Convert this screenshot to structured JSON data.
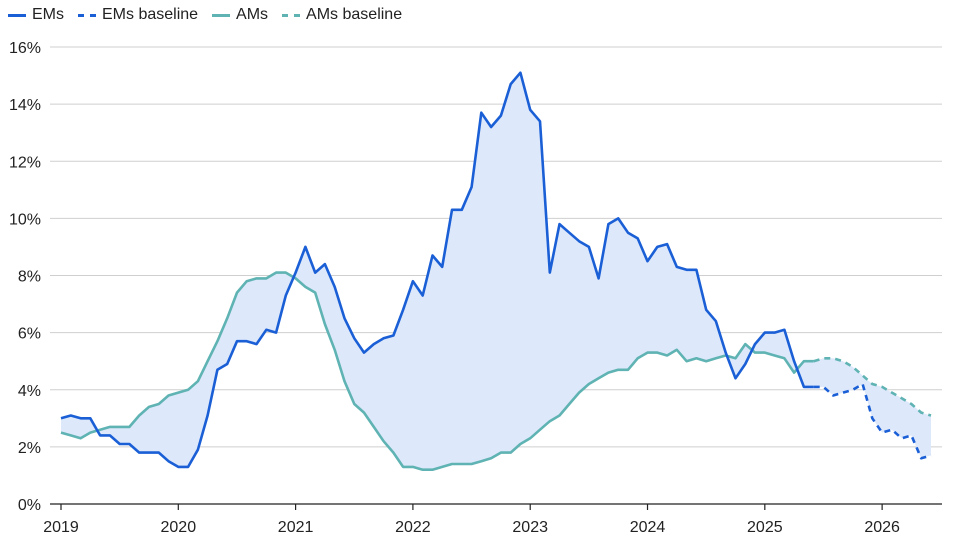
{
  "chart_data": {
    "type": "line",
    "title": "",
    "xlabel": "",
    "ylabel": "",
    "x_tick_labels": [
      "2019",
      "2020",
      "2021",
      "2022",
      "2023",
      "2024",
      "2025",
      "2026"
    ],
    "y_tick_labels": [
      "0%",
      "2%",
      "4%",
      "6%",
      "8%",
      "10%",
      "12%",
      "14%",
      "16%"
    ],
    "ylim": [
      0,
      16
    ],
    "xlim": [
      "2019-01",
      "2026-06"
    ],
    "grid": "horizontal",
    "legend_position": "top-left",
    "shaded_area": "between EMs and AMs",
    "colors": {
      "ems": "#1a5fd6",
      "ams": "#5fb3b3",
      "fill": "#dde8fb",
      "grid": "#cfcfcf",
      "axis": "#222222"
    },
    "series": [
      {
        "name": "EMs",
        "style": "solid",
        "x": [
          "2019-01",
          "2019-02",
          "2019-03",
          "2019-04",
          "2019-05",
          "2019-06",
          "2019-07",
          "2019-08",
          "2019-09",
          "2019-10",
          "2019-11",
          "2019-12",
          "2020-01",
          "2020-02",
          "2020-03",
          "2020-04",
          "2020-05",
          "2020-06",
          "2020-07",
          "2020-08",
          "2020-09",
          "2020-10",
          "2020-11",
          "2020-12",
          "2021-01",
          "2021-02",
          "2021-03",
          "2021-04",
          "2021-05",
          "2021-06",
          "2021-07",
          "2021-08",
          "2021-09",
          "2021-10",
          "2021-11",
          "2021-12",
          "2022-01",
          "2022-02",
          "2022-03",
          "2022-04",
          "2022-05",
          "2022-06",
          "2022-07",
          "2022-08",
          "2022-09",
          "2022-10",
          "2022-11",
          "2022-12",
          "2023-01",
          "2023-02",
          "2023-03",
          "2023-04",
          "2023-05",
          "2023-06",
          "2023-07",
          "2023-08",
          "2023-09",
          "2023-10",
          "2023-11",
          "2023-12",
          "2024-01",
          "2024-02",
          "2024-03",
          "2024-04",
          "2024-05",
          "2024-06",
          "2024-07",
          "2024-08",
          "2024-09",
          "2024-10",
          "2024-11",
          "2024-12",
          "2025-01",
          "2025-02",
          "2025-03",
          "2025-04",
          "2025-05",
          "2025-06"
        ],
        "values": [
          3.0,
          3.1,
          3.0,
          3.0,
          2.4,
          2.4,
          2.1,
          2.1,
          1.8,
          1.8,
          1.8,
          1.5,
          1.3,
          1.3,
          1.9,
          3.1,
          4.7,
          4.9,
          5.7,
          5.7,
          5.6,
          6.1,
          6.0,
          7.3,
          8.1,
          9.0,
          8.1,
          8.4,
          7.6,
          6.5,
          5.8,
          5.3,
          5.6,
          5.8,
          5.9,
          6.8,
          7.8,
          7.3,
          8.7,
          8.3,
          10.3,
          10.3,
          11.1,
          13.7,
          13.2,
          13.6,
          14.7,
          15.1,
          13.8,
          13.4,
          8.1,
          9.8,
          9.5,
          9.2,
          9.0,
          7.9,
          9.8,
          10.0,
          9.5,
          9.3,
          8.5,
          9.0,
          9.1,
          8.3,
          8.2,
          8.2,
          6.8,
          6.4,
          5.3,
          4.4,
          4.9,
          5.6,
          6.0,
          6.0,
          6.1,
          5.0,
          4.1,
          4.1
        ]
      },
      {
        "name": "EMs baseline",
        "style": "dashed",
        "x": [
          "2025-06",
          "2025-07",
          "2025-08",
          "2025-09",
          "2025-10",
          "2025-11",
          "2025-12",
          "2026-01",
          "2026-02",
          "2026-03",
          "2026-04",
          "2026-05",
          "2026-06"
        ],
        "values": [
          4.1,
          4.1,
          3.8,
          3.9,
          4.0,
          4.2,
          3.0,
          2.5,
          2.6,
          2.3,
          2.4,
          1.6,
          1.7
        ]
      },
      {
        "name": "AMs",
        "style": "solid",
        "x": [
          "2019-01",
          "2019-02",
          "2019-03",
          "2019-04",
          "2019-05",
          "2019-06",
          "2019-07",
          "2019-08",
          "2019-09",
          "2019-10",
          "2019-11",
          "2019-12",
          "2020-01",
          "2020-02",
          "2020-03",
          "2020-04",
          "2020-05",
          "2020-06",
          "2020-07",
          "2020-08",
          "2020-09",
          "2020-10",
          "2020-11",
          "2020-12",
          "2021-01",
          "2021-02",
          "2021-03",
          "2021-04",
          "2021-05",
          "2021-06",
          "2021-07",
          "2021-08",
          "2021-09",
          "2021-10",
          "2021-11",
          "2021-12",
          "2022-01",
          "2022-02",
          "2022-03",
          "2022-04",
          "2022-05",
          "2022-06",
          "2022-07",
          "2022-08",
          "2022-09",
          "2022-10",
          "2022-11",
          "2022-12",
          "2023-01",
          "2023-02",
          "2023-03",
          "2023-04",
          "2023-05",
          "2023-06",
          "2023-07",
          "2023-08",
          "2023-09",
          "2023-10",
          "2023-11",
          "2023-12",
          "2024-01",
          "2024-02",
          "2024-03",
          "2024-04",
          "2024-05",
          "2024-06",
          "2024-07",
          "2024-08",
          "2024-09",
          "2024-10",
          "2024-11",
          "2024-12",
          "2025-01",
          "2025-02",
          "2025-03",
          "2025-04",
          "2025-05",
          "2025-06"
        ],
        "values": [
          2.5,
          2.4,
          2.3,
          2.5,
          2.6,
          2.7,
          2.7,
          2.7,
          3.1,
          3.4,
          3.5,
          3.8,
          3.9,
          4.0,
          4.3,
          5.0,
          5.7,
          6.5,
          7.4,
          7.8,
          7.9,
          7.9,
          8.1,
          8.1,
          7.9,
          7.6,
          7.4,
          6.3,
          5.4,
          4.3,
          3.5,
          3.2,
          2.7,
          2.2,
          1.8,
          1.3,
          1.3,
          1.2,
          1.2,
          1.3,
          1.4,
          1.4,
          1.4,
          1.5,
          1.6,
          1.8,
          1.8,
          2.1,
          2.3,
          2.6,
          2.9,
          3.1,
          3.5,
          3.9,
          4.2,
          4.4,
          4.6,
          4.7,
          4.7,
          5.1,
          5.3,
          5.3,
          5.2,
          5.4,
          5.0,
          5.1,
          5.0,
          5.1,
          5.2,
          5.1,
          5.6,
          5.3,
          5.3,
          5.2,
          5.1,
          4.6,
          5.0,
          5.0
        ]
      },
      {
        "name": "AMs baseline",
        "style": "dashed",
        "x": [
          "2025-06",
          "2025-07",
          "2025-08",
          "2025-09",
          "2025-10",
          "2025-11",
          "2025-12",
          "2026-01",
          "2026-02",
          "2026-03",
          "2026-04",
          "2026-05",
          "2026-06"
        ],
        "values": [
          5.0,
          5.1,
          5.1,
          5.0,
          4.8,
          4.5,
          4.2,
          4.1,
          3.9,
          3.7,
          3.5,
          3.2,
          3.1
        ]
      }
    ]
  }
}
